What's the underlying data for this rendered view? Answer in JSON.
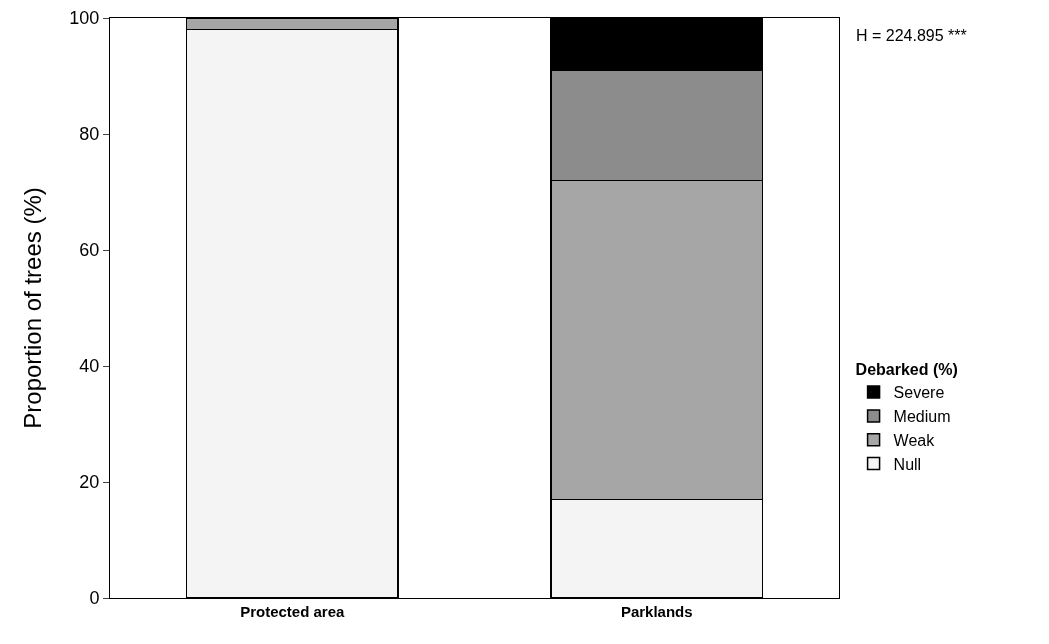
{
  "chart_data": {
    "type": "bar",
    "stacked": true,
    "ylabel": "Proportion of trees (%)",
    "legend_title": "Debarked (%)",
    "legend": "right",
    "categories": [
      "Protected area",
      "Parklands"
    ],
    "series": [
      {
        "name": "Null",
        "color": "#f4f4f4",
        "values": [
          98,
          17
        ]
      },
      {
        "name": "Weak",
        "color": "#a6a6a6",
        "values": [
          2,
          55
        ]
      },
      {
        "name": "Medium",
        "color": "#8c8c8c",
        "values": [
          0,
          19
        ]
      },
      {
        "name": "Severe",
        "color": "#000000",
        "values": [
          0,
          9
        ]
      }
    ],
    "ylim": [
      0,
      100
    ],
    "yticks": [
      0,
      20,
      40,
      60,
      80,
      100
    ],
    "grid": false,
    "annotations": [
      "H = 224.895 ***"
    ]
  }
}
